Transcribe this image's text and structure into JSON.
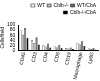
{
  "chart_data": {
    "type": "bar",
    "y_label": "Cells/field",
    "categories": [
      "CD45",
      "CD3",
      "CD4",
      "CD8",
      "CD19",
      "Macrophage",
      "Ly6G"
    ],
    "series": [
      {
        "name": "WT",
        "color": "#ffffff",
        "values": [
          78,
          40,
          22,
          16,
          10,
          30,
          8
        ]
      },
      {
        "name": "Cblb-/-",
        "color": "#c0c0c0",
        "values": [
          62,
          30,
          16,
          12,
          8,
          24,
          6
        ]
      },
      {
        "name": "WT/CbA",
        "color": "#707070",
        "values": [
          88,
          52,
          28,
          22,
          12,
          36,
          10
        ]
      },
      {
        "name": "Cblb-/-/CbA",
        "color": "#000000",
        "values": [
          50,
          24,
          12,
          10,
          6,
          18,
          4
        ]
      }
    ],
    "ylim": [
      0,
      100
    ],
    "yticks": [
      0,
      20,
      40,
      60,
      80,
      100
    ],
    "grid": false,
    "legend": "top-right"
  }
}
